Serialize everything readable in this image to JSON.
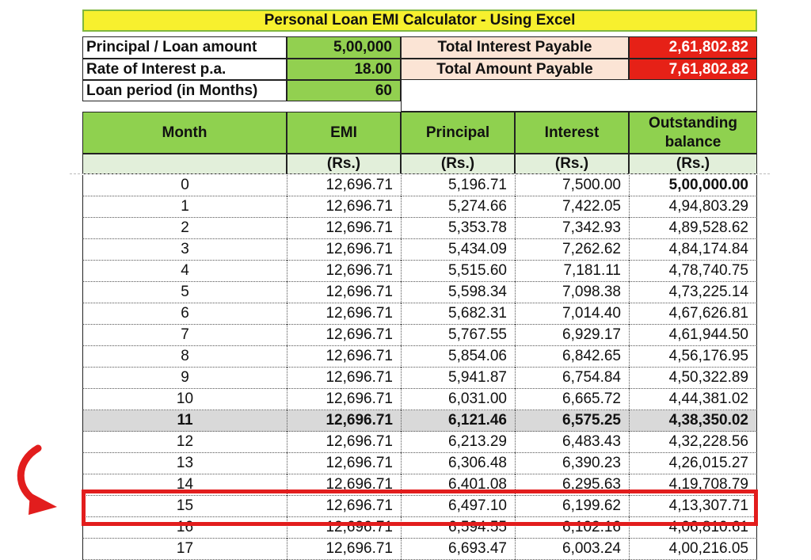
{
  "title": "Personal Loan EMI Calculator - Using Excel",
  "inputs": {
    "principal_label": "Principal / Loan amount",
    "principal_value": "5,00,000",
    "rate_label": "Rate of Interest p.a.",
    "rate_value": "18.00",
    "period_label": "Loan period (in Months)",
    "period_value": "60"
  },
  "summary": {
    "interest_label": "Total Interest Payable",
    "interest_value": "2,61,802.82",
    "amount_label": "Total Amount Payable",
    "amount_value": "7,61,802.82"
  },
  "headers": {
    "month": "Month",
    "emi": "EMI",
    "principal": "Principal",
    "interest": "Interest",
    "outstanding": "Outstanding balance",
    "unit": "(Rs.)"
  },
  "rows": [
    {
      "month": "0",
      "emi": "12,696.71",
      "principal": "5,196.71",
      "interest": "7,500.00",
      "balance": "5,00,000.00"
    },
    {
      "month": "1",
      "emi": "12,696.71",
      "principal": "5,274.66",
      "interest": "7,422.05",
      "balance": "4,94,803.29"
    },
    {
      "month": "2",
      "emi": "12,696.71",
      "principal": "5,353.78",
      "interest": "7,342.93",
      "balance": "4,89,528.62"
    },
    {
      "month": "3",
      "emi": "12,696.71",
      "principal": "5,434.09",
      "interest": "7,262.62",
      "balance": "4,84,174.84"
    },
    {
      "month": "4",
      "emi": "12,696.71",
      "principal": "5,515.60",
      "interest": "7,181.11",
      "balance": "4,78,740.75"
    },
    {
      "month": "5",
      "emi": "12,696.71",
      "principal": "5,598.34",
      "interest": "7,098.38",
      "balance": "4,73,225.14"
    },
    {
      "month": "6",
      "emi": "12,696.71",
      "principal": "5,682.31",
      "interest": "7,014.40",
      "balance": "4,67,626.81"
    },
    {
      "month": "7",
      "emi": "12,696.71",
      "principal": "5,767.55",
      "interest": "6,929.17",
      "balance": "4,61,944.50"
    },
    {
      "month": "8",
      "emi": "12,696.71",
      "principal": "5,854.06",
      "interest": "6,842.65",
      "balance": "4,56,176.95"
    },
    {
      "month": "9",
      "emi": "12,696.71",
      "principal": "5,941.87",
      "interest": "6,754.84",
      "balance": "4,50,322.89"
    },
    {
      "month": "10",
      "emi": "12,696.71",
      "principal": "6,031.00",
      "interest": "6,665.72",
      "balance": "4,44,381.02"
    },
    {
      "month": "11",
      "emi": "12,696.71",
      "principal": "6,121.46",
      "interest": "6,575.25",
      "balance": "4,38,350.02"
    },
    {
      "month": "12",
      "emi": "12,696.71",
      "principal": "6,213.29",
      "interest": "6,483.43",
      "balance": "4,32,228.56"
    },
    {
      "month": "13",
      "emi": "12,696.71",
      "principal": "6,306.48",
      "interest": "6,390.23",
      "balance": "4,26,015.27"
    },
    {
      "month": "14",
      "emi": "12,696.71",
      "principal": "6,401.08",
      "interest": "6,295.63",
      "balance": "4,19,708.79"
    },
    {
      "month": "15",
      "emi": "12,696.71",
      "principal": "6,497.10",
      "interest": "6,199.62",
      "balance": "4,13,307.71"
    },
    {
      "month": "16",
      "emi": "12,696.71",
      "principal": "6,594.55",
      "interest": "6,102.16",
      "balance": "4,06,810.61"
    },
    {
      "month": "17",
      "emi": "12,696.71",
      "principal": "6,693.47",
      "interest": "6,003.24",
      "balance": "4,00,216.05"
    }
  ],
  "highlighted_month": "11",
  "focused_month": "15",
  "colors": {
    "title_bg": "#f7f02e",
    "input_value_bg": "#92d050",
    "summary_label_bg": "#fbe4d5",
    "summary_value_bg": "#e62117",
    "header_bg": "#8fd14f",
    "highlight_row_bg": "#d9d9d9",
    "annotation_red": "#e21d1d"
  },
  "icons": {
    "annotation_arrow": "curved-arrow-icon"
  }
}
